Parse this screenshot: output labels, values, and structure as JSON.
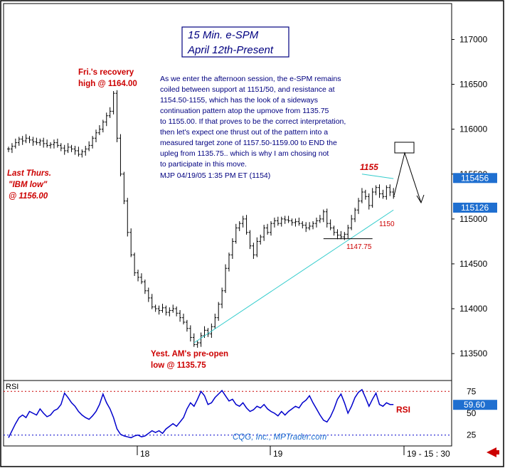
{
  "chart_data": {
    "type": "bar",
    "subtype": "ohlc-price-with-rsi",
    "title_lines": [
      "15 Min. e-SPM",
      "April 12th-Present"
    ],
    "y_axis": {
      "ticks": [
        "117000",
        "116500",
        "116000",
        "115500",
        "115000",
        "114500",
        "114000",
        "113500"
      ],
      "range": [
        113200,
        117400
      ]
    },
    "price_flags": [
      {
        "value": 115456,
        "label": "115456",
        "color": "#1f6fd0"
      },
      {
        "value": 115126,
        "label": "115126",
        "color": "#1f6fd0"
      }
    ],
    "x_axis": {
      "ticks": [
        "18",
        "19"
      ],
      "end_label": "19 - 15 : 30"
    },
    "commentary": [
      "As we enter the afternoon session, the e-SPM remains",
      "coiled between support at 1151/50, and resistance at",
      "1154.50-1155, which has the look of a sideways",
      "continuation pattern atop the upmove from 1135.75",
      "to 1155.00. If that proves to be the correct interpretation,",
      "then let's expect one thrust out of the pattern into a",
      "measured target zone of 1157.50-1159.00 to END the",
      "upleg from 1135.75.. which is why I am chosing not",
      "to participate in this move.",
      "MJP 04/19/05 1:35 PM ET  (1154)"
    ],
    "annotations": {
      "fri_recovery": [
        "Fri.'s recovery",
        "high @ 1164.00"
      ],
      "last_thurs": [
        "Last Thurs.",
        "\"IBM low\"",
        "@ 1156.00"
      ],
      "yest_am": [
        "Yest. AM's pre-open",
        "low @ 1135.75"
      ],
      "level_1155": "1155",
      "level_1150": "1150",
      "level_114775": "1147.75"
    },
    "price_series": [
      115780,
      115810,
      115850,
      115890,
      115870,
      115900,
      115880,
      115860,
      115850,
      115870,
      115840,
      115820,
      115830,
      115850,
      115820,
      115790,
      115760,
      115800,
      115780,
      115760,
      115720,
      115750,
      115780,
      115820,
      115900,
      115960,
      116000,
      116080,
      116150,
      116200,
      116400,
      115900,
      115500,
      115200,
      114850,
      114600,
      114400,
      114350,
      114300,
      114200,
      114120,
      114020,
      114000,
      113980,
      114010,
      113960,
      113980,
      114000,
      113950,
      113900,
      113850,
      113780,
      113680,
      113600,
      113620,
      113700,
      113760,
      113720,
      113800,
      113900,
      114050,
      114200,
      114450,
      114600,
      114750,
      114900,
      114950,
      115000,
      114850,
      114700,
      114600,
      114750,
      114800,
      114900,
      114850,
      114950,
      114980,
      114950,
      115000,
      114990,
      114980,
      114960,
      114970,
      114950,
      114930,
      114900,
      114920,
      114950,
      114980,
      115000,
      115080,
      114950,
      114900,
      114850,
      114820,
      114800,
      114830,
      114900,
      115000,
      115100,
      115200,
      115300,
      115250,
      115150,
      115300,
      115350,
      115280,
      115250,
      115350,
      115300,
      115250
    ],
    "trendline": {
      "from": {
        "bar": 53,
        "value": 113620
      },
      "to": {
        "bar": 110,
        "value": 115100
      }
    },
    "resistance_line": {
      "from": {
        "bar": 101,
        "value": 115500
      },
      "to": {
        "bar": 110,
        "value": 115450
      }
    },
    "support_line": {
      "from": {
        "bar": 90,
        "value": 114780
      },
      "to": {
        "bar": 104,
        "value": 114780
      }
    },
    "rsi": {
      "label": "RSI",
      "series_label": "RSI",
      "current_value": "59.60",
      "ticks": [
        "75",
        "50",
        "25"
      ],
      "range": [
        15,
        85
      ],
      "overbought": 75,
      "oversold": 25,
      "values": [
        22,
        30,
        38,
        45,
        48,
        45,
        52,
        50,
        48,
        55,
        50,
        46,
        48,
        53,
        55,
        60,
        73,
        68,
        62,
        58,
        52,
        48,
        45,
        43,
        47,
        52,
        60,
        72,
        62,
        55,
        45,
        32,
        26,
        24,
        23,
        22,
        24,
        25,
        23,
        24,
        27,
        30,
        28,
        30,
        27,
        32,
        35,
        38,
        35,
        40,
        45,
        55,
        62,
        58,
        66,
        75,
        70,
        60,
        62,
        68,
        72,
        76,
        70,
        64,
        66,
        60,
        58,
        62,
        56,
        52,
        54,
        58,
        56,
        60,
        55,
        52,
        50,
        47,
        52,
        48,
        52,
        55,
        58,
        56,
        62,
        65,
        70,
        62,
        55,
        48,
        42,
        40,
        46,
        55,
        66,
        72,
        62,
        50,
        58,
        68,
        74,
        77,
        68,
        58,
        66,
        73,
        60,
        58,
        62,
        60,
        60
      ]
    },
    "footer": "CQG, Inc., MPTrader.com"
  },
  "colors": {
    "bars": "#000000",
    "trendline": "#33cccc",
    "rsi_line": "#0000cc",
    "rsi_level_top": "#cc0000",
    "rsi_level_bottom": "#0000cc",
    "price_flag": "#1f6fd0",
    "annotation": "#cc0000",
    "title": "#000080"
  }
}
